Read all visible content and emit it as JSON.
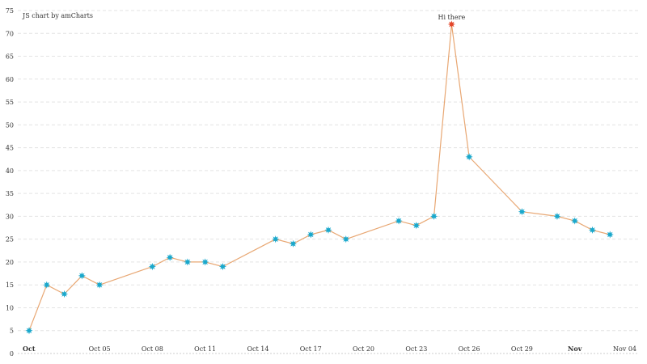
{
  "credit": "JS chart by amCharts",
  "colors": {
    "line": "#e8a773",
    "marker": "#1aa8cc",
    "highlight": "#e3462a",
    "grid": "#e3e3e3"
  },
  "marker_icon": "star-icon",
  "chart_data": {
    "type": "line",
    "title": "",
    "xlabel": "",
    "ylabel": "",
    "ylim": [
      0,
      75
    ],
    "yticks": [
      0,
      5,
      10,
      15,
      20,
      25,
      30,
      35,
      40,
      45,
      50,
      55,
      60,
      65,
      70,
      75
    ],
    "xlim": [
      "2025-10-01",
      "2025-11-04"
    ],
    "xticks": [
      {
        "date": "2025-10-01",
        "label": "Oct",
        "bold": true
      },
      {
        "date": "2025-10-05",
        "label": "Oct 05",
        "bold": false
      },
      {
        "date": "2025-10-08",
        "label": "Oct 08",
        "bold": false
      },
      {
        "date": "2025-10-11",
        "label": "Oct 11",
        "bold": false
      },
      {
        "date": "2025-10-14",
        "label": "Oct 14",
        "bold": false
      },
      {
        "date": "2025-10-17",
        "label": "Oct 17",
        "bold": false
      },
      {
        "date": "2025-10-20",
        "label": "Oct 20",
        "bold": false
      },
      {
        "date": "2025-10-23",
        "label": "Oct 23",
        "bold": false
      },
      {
        "date": "2025-10-26",
        "label": "Oct 26",
        "bold": false
      },
      {
        "date": "2025-10-29",
        "label": "Oct 29",
        "bold": false
      },
      {
        "date": "2025-11-01",
        "label": "Nov",
        "bold": true
      },
      {
        "date": "2025-11-04",
        "label": "Nov 04",
        "bold": false
      }
    ],
    "grid": true,
    "points": [
      {
        "x": "2025-10-01",
        "y": 5
      },
      {
        "x": "2025-10-02",
        "y": 15
      },
      {
        "x": "2025-10-03",
        "y": 13
      },
      {
        "x": "2025-10-04",
        "y": 17
      },
      {
        "x": "2025-10-05",
        "y": 15
      },
      {
        "x": "2025-10-08",
        "y": 19
      },
      {
        "x": "2025-10-09",
        "y": 21
      },
      {
        "x": "2025-10-10",
        "y": 20
      },
      {
        "x": "2025-10-11",
        "y": 20
      },
      {
        "x": "2025-10-12",
        "y": 19
      },
      {
        "x": "2025-10-15",
        "y": 25
      },
      {
        "x": "2025-10-16",
        "y": 24
      },
      {
        "x": "2025-10-17",
        "y": 26
      },
      {
        "x": "2025-10-18",
        "y": 27
      },
      {
        "x": "2025-10-19",
        "y": 25
      },
      {
        "x": "2025-10-22",
        "y": 29
      },
      {
        "x": "2025-10-23",
        "y": 28
      },
      {
        "x": "2025-10-24",
        "y": 30
      },
      {
        "x": "2025-10-25",
        "y": 72,
        "label": "Hi there",
        "highlight": true
      },
      {
        "x": "2025-10-26",
        "y": 43
      },
      {
        "x": "2025-10-29",
        "y": 31
      },
      {
        "x": "2025-10-31",
        "y": 30
      },
      {
        "x": "2025-11-01",
        "y": 29
      },
      {
        "x": "2025-11-02",
        "y": 27
      },
      {
        "x": "2025-11-03",
        "y": 26
      }
    ]
  }
}
